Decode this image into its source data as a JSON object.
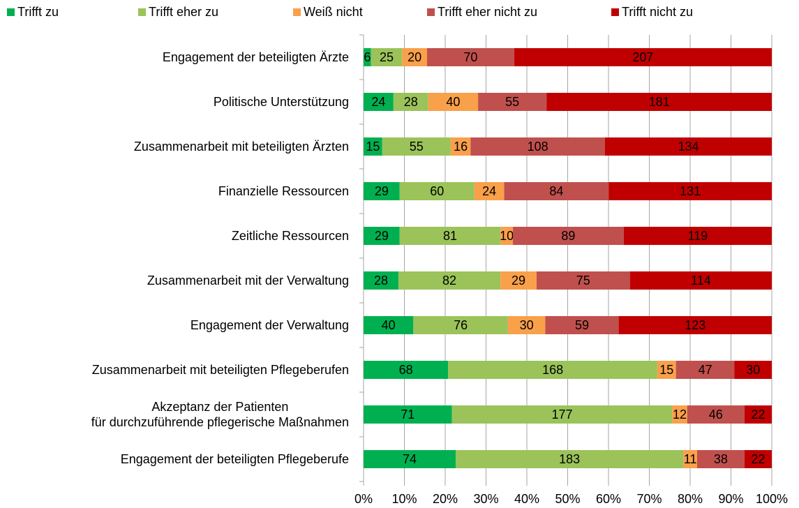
{
  "chart_data": {
    "type": "bar",
    "orientation": "horizontal",
    "stacking": "percent",
    "categories": [
      "Engagement der beteiligten Ärzte",
      "Politische Unterstützung",
      "Zusammenarbeit mit beteiligten Ärzten",
      "Finanzielle Ressourcen",
      "Zeitliche Ressourcen",
      "Zusammenarbeit mit der Verwaltung",
      "Engagement der Verwaltung",
      "Zusammenarbeit mit beteiligten Pflegeberufen",
      "Akzeptanz der Patienten\nfür durchzuführende pflegerische Maßnahmen",
      "Engagement der beteiligten Pflegeberufe"
    ],
    "series": [
      {
        "name": "Trifft zu",
        "color": "#00b050",
        "values": [
          6,
          24,
          15,
          29,
          29,
          28,
          40,
          68,
          71,
          74
        ]
      },
      {
        "name": "Trifft eher zu",
        "color": "#9bc35a",
        "values": [
          25,
          28,
          55,
          60,
          81,
          82,
          76,
          168,
          177,
          183
        ]
      },
      {
        "name": "Weiß nicht",
        "color": "#f9a04a",
        "values": [
          20,
          40,
          16,
          24,
          10,
          29,
          30,
          15,
          12,
          11
        ]
      },
      {
        "name": "Trifft eher nicht zu",
        "color": "#c0504d",
        "values": [
          70,
          55,
          108,
          84,
          89,
          75,
          59,
          47,
          46,
          38
        ]
      },
      {
        "name": "Trifft nicht zu",
        "color": "#c00000",
        "values": [
          207,
          181,
          134,
          131,
          119,
          114,
          123,
          30,
          22,
          22
        ]
      }
    ],
    "xlim": [
      0,
      100
    ],
    "xticks": [
      {
        "value": 0,
        "label": "0%"
      },
      {
        "value": 10,
        "label": "10%"
      },
      {
        "value": 20,
        "label": "20%"
      },
      {
        "value": 30,
        "label": "30%"
      },
      {
        "value": 40,
        "label": "40%"
      },
      {
        "value": 50,
        "label": "50%"
      },
      {
        "value": 60,
        "label": "60%"
      },
      {
        "value": 70,
        "label": "70%"
      },
      {
        "value": 80,
        "label": "80%"
      },
      {
        "value": 90,
        "label": "90%"
      },
      {
        "value": 100,
        "label": "100%"
      }
    ],
    "grid": true,
    "legend": "top"
  }
}
